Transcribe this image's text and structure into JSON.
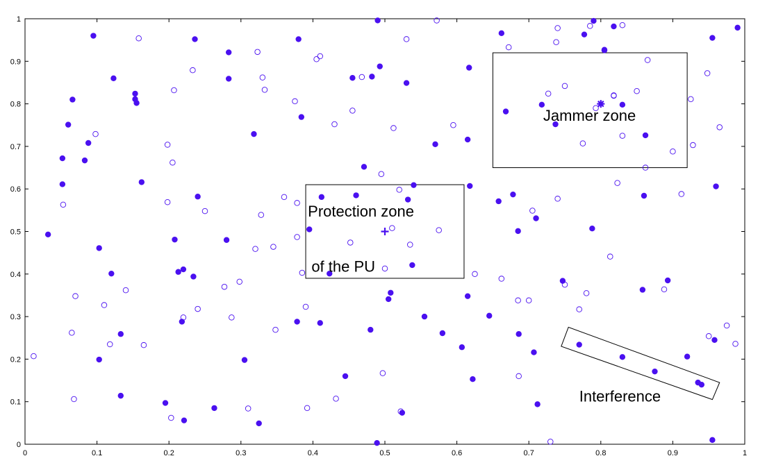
{
  "chart_data": {
    "type": "scatter",
    "title": "",
    "xlabel": "",
    "ylabel": "",
    "xlim": [
      0,
      1
    ],
    "ylim": [
      0,
      1
    ],
    "x_ticks": [
      "0",
      "0.1",
      "0.2",
      "0.3",
      "0.4",
      "0.5",
      "0.6",
      "0.7",
      "0.8",
      "0.9",
      "1"
    ],
    "y_ticks": [
      "0",
      "0.1",
      "0.2",
      "0.3",
      "0.4",
      "0.5",
      "0.6",
      "0.7",
      "0.8",
      "0.9",
      "1"
    ],
    "grid": false,
    "marker_color": "#4a10f0",
    "series": [
      {
        "marker": "filled-circle",
        "points": [
          [
            0.032,
            0.493
          ],
          [
            0.052,
            0.672
          ],
          [
            0.052,
            0.611
          ],
          [
            0.06,
            0.751
          ],
          [
            0.066,
            0.81
          ],
          [
            0.083,
            0.667
          ],
          [
            0.088,
            0.708
          ],
          [
            0.095,
            0.96
          ],
          [
            0.103,
            0.461
          ],
          [
            0.103,
            0.199
          ],
          [
            0.12,
            0.401
          ],
          [
            0.123,
            0.86
          ],
          [
            0.133,
            0.259
          ],
          [
            0.133,
            0.114
          ],
          [
            0.153,
            0.824
          ],
          [
            0.153,
            0.811
          ],
          [
            0.155,
            0.802
          ],
          [
            0.162,
            0.616
          ],
          [
            0.195,
            0.097
          ],
          [
            0.208,
            0.481
          ],
          [
            0.213,
            0.405
          ],
          [
            0.218,
            0.288
          ],
          [
            0.22,
            0.411
          ],
          [
            0.221,
            0.056
          ],
          [
            0.234,
            0.394
          ],
          [
            0.236,
            0.952
          ],
          [
            0.24,
            0.582
          ],
          [
            0.263,
            0.085
          ],
          [
            0.28,
            0.48
          ],
          [
            0.283,
            0.859
          ],
          [
            0.283,
            0.921
          ],
          [
            0.305,
            0.198
          ],
          [
            0.318,
            0.729
          ],
          [
            0.325,
            0.049
          ],
          [
            0.378,
            0.288
          ],
          [
            0.38,
            0.952
          ],
          [
            0.384,
            0.769
          ],
          [
            0.395,
            0.505
          ],
          [
            0.41,
            0.285
          ],
          [
            0.412,
            0.581
          ],
          [
            0.423,
            0.401
          ],
          [
            0.445,
            0.16
          ],
          [
            0.455,
            0.861
          ],
          [
            0.46,
            0.585
          ],
          [
            0.471,
            0.652
          ],
          [
            0.48,
            0.269
          ],
          [
            0.482,
            0.864
          ],
          [
            0.489,
            0.003
          ],
          [
            0.49,
            0.996
          ],
          [
            0.493,
            0.888
          ],
          [
            0.505,
            0.341
          ],
          [
            0.508,
            0.356
          ],
          [
            0.524,
            0.074
          ],
          [
            0.53,
            0.849
          ],
          [
            0.532,
            0.575
          ],
          [
            0.538,
            0.421
          ],
          [
            0.54,
            0.609
          ],
          [
            0.555,
            0.3
          ],
          [
            0.57,
            0.705
          ],
          [
            0.58,
            0.261
          ],
          [
            0.607,
            0.228
          ],
          [
            0.615,
            0.348
          ],
          [
            0.615,
            0.716
          ],
          [
            0.617,
            0.885
          ],
          [
            0.618,
            0.607
          ],
          [
            0.622,
            0.153
          ],
          [
            0.645,
            0.302
          ],
          [
            0.658,
            0.571
          ],
          [
            0.662,
            0.966
          ],
          [
            0.668,
            0.782
          ],
          [
            0.678,
            0.587
          ],
          [
            0.685,
            0.501
          ],
          [
            0.686,
            0.259
          ],
          [
            0.707,
            0.216
          ],
          [
            0.71,
            0.531
          ],
          [
            0.712,
            0.094
          ],
          [
            0.718,
            0.798
          ],
          [
            0.737,
            0.752
          ],
          [
            0.747,
            0.384
          ],
          [
            0.77,
            0.234
          ],
          [
            0.777,
            0.963
          ],
          [
            0.788,
            0.507
          ],
          [
            0.79,
            0.995
          ],
          [
            0.805,
            0.927
          ],
          [
            0.818,
            0.982
          ],
          [
            0.83,
            0.205
          ],
          [
            0.83,
            0.798
          ],
          [
            0.858,
            0.363
          ],
          [
            0.86,
            0.584
          ],
          [
            0.862,
            0.726
          ],
          [
            0.875,
            0.171
          ],
          [
            0.893,
            0.385
          ],
          [
            0.92,
            0.206
          ],
          [
            0.935,
            0.145
          ],
          [
            0.94,
            0.14
          ],
          [
            0.955,
            0.955
          ],
          [
            0.955,
            0.01
          ],
          [
            0.958,
            0.245
          ],
          [
            0.96,
            0.606
          ],
          [
            0.99,
            0.979
          ]
        ]
      },
      {
        "marker": "hollow-circle",
        "points": [
          [
            0.012,
            0.207
          ],
          [
            0.053,
            0.563
          ],
          [
            0.065,
            0.262
          ],
          [
            0.068,
            0.106
          ],
          [
            0.07,
            0.348
          ],
          [
            0.098,
            0.729
          ],
          [
            0.11,
            0.327
          ],
          [
            0.118,
            0.235
          ],
          [
            0.14,
            0.362
          ],
          [
            0.158,
            0.954
          ],
          [
            0.165,
            0.233
          ],
          [
            0.198,
            0.569
          ],
          [
            0.198,
            0.704
          ],
          [
            0.203,
            0.062
          ],
          [
            0.205,
            0.662
          ],
          [
            0.207,
            0.832
          ],
          [
            0.22,
            0.298
          ],
          [
            0.233,
            0.879
          ],
          [
            0.24,
            0.318
          ],
          [
            0.25,
            0.548
          ],
          [
            0.277,
            0.37
          ],
          [
            0.287,
            0.298
          ],
          [
            0.298,
            0.382
          ],
          [
            0.31,
            0.084
          ],
          [
            0.32,
            0.459
          ],
          [
            0.323,
            0.922
          ],
          [
            0.328,
            0.539
          ],
          [
            0.33,
            0.862
          ],
          [
            0.333,
            0.833
          ],
          [
            0.345,
            0.464
          ],
          [
            0.348,
            0.269
          ],
          [
            0.36,
            0.581
          ],
          [
            0.375,
            0.806
          ],
          [
            0.378,
            0.567
          ],
          [
            0.378,
            0.487
          ],
          [
            0.385,
            0.403
          ],
          [
            0.39,
            0.323
          ],
          [
            0.392,
            0.085
          ],
          [
            0.405,
            0.905
          ],
          [
            0.41,
            0.912
          ],
          [
            0.43,
            0.752
          ],
          [
            0.432,
            0.107
          ],
          [
            0.452,
            0.474
          ],
          [
            0.455,
            0.784
          ],
          [
            0.468,
            0.863
          ],
          [
            0.495,
            0.635
          ],
          [
            0.497,
            0.167
          ],
          [
            0.5,
            0.413
          ],
          [
            0.51,
            0.508
          ],
          [
            0.512,
            0.743
          ],
          [
            0.52,
            0.598
          ],
          [
            0.522,
            0.077
          ],
          [
            0.53,
            0.952
          ],
          [
            0.535,
            0.469
          ],
          [
            0.572,
            0.996
          ],
          [
            0.575,
            0.503
          ],
          [
            0.595,
            0.75
          ],
          [
            0.625,
            0.4
          ],
          [
            0.662,
            0.389
          ],
          [
            0.672,
            0.933
          ],
          [
            0.685,
            0.338
          ],
          [
            0.686,
            0.16
          ],
          [
            0.7,
            0.338
          ],
          [
            0.705,
            0.549
          ],
          [
            0.727,
            0.824
          ],
          [
            0.73,
            0.006
          ],
          [
            0.738,
            0.945
          ],
          [
            0.74,
            0.978
          ],
          [
            0.74,
            0.577
          ],
          [
            0.75,
            0.375
          ],
          [
            0.75,
            0.842
          ],
          [
            0.77,
            0.317
          ],
          [
            0.775,
            0.707
          ],
          [
            0.78,
            0.355
          ],
          [
            0.785,
            0.983
          ],
          [
            0.793,
            0.79
          ],
          [
            0.805,
            0.926
          ],
          [
            0.813,
            0.441
          ],
          [
            0.818,
            0.819
          ],
          [
            0.818,
            0.82
          ],
          [
            0.823,
            0.614
          ],
          [
            0.83,
            0.985
          ],
          [
            0.83,
            0.725
          ],
          [
            0.85,
            0.83
          ],
          [
            0.862,
            0.65
          ],
          [
            0.865,
            0.903
          ],
          [
            0.888,
            0.364
          ],
          [
            0.9,
            0.688
          ],
          [
            0.912,
            0.588
          ],
          [
            0.925,
            0.811
          ],
          [
            0.928,
            0.703
          ],
          [
            0.948,
            0.872
          ],
          [
            0.95,
            0.254
          ],
          [
            0.965,
            0.745
          ],
          [
            0.975,
            0.279
          ],
          [
            0.987,
            0.236
          ]
        ]
      },
      {
        "marker": "asterisk",
        "points": [
          [
            0.8,
            0.8
          ]
        ]
      },
      {
        "marker": "plus",
        "points": [
          [
            0.5,
            0.5
          ]
        ]
      }
    ],
    "annotations": [
      {
        "text": "Jammer zone",
        "x": 0.72,
        "y": 0.76
      },
      {
        "text": "Protection zone",
        "x": 0.393,
        "y": 0.535
      },
      {
        "text": "of the PU",
        "x": 0.398,
        "y": 0.405
      },
      {
        "text": "Interference",
        "x": 0.77,
        "y": 0.1
      }
    ],
    "regions": [
      {
        "name": "jammer-zone",
        "shape": "rect",
        "x_range": [
          0.65,
          0.92
        ],
        "y_range": [
          0.65,
          0.92
        ]
      },
      {
        "name": "protection-zone",
        "shape": "rect",
        "x_range": [
          0.39,
          0.61
        ],
        "y_range": [
          0.39,
          0.61
        ]
      },
      {
        "name": "interference-zone",
        "shape": "polygon",
        "corners": [
          [
            0.755,
            0.275
          ],
          [
            0.745,
            0.23
          ],
          [
            0.955,
            0.105
          ],
          [
            0.965,
            0.145
          ]
        ]
      }
    ]
  }
}
